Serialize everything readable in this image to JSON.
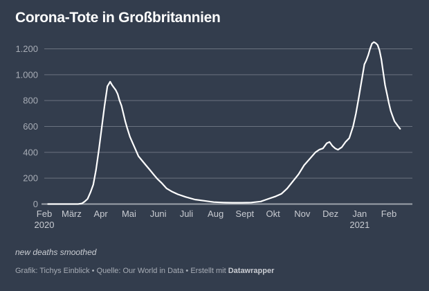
{
  "colors": {
    "background": "#333d4d",
    "line": "#ffffff",
    "grid": "#6b7380",
    "baseline": "#9ea3ab"
  },
  "chart_data": {
    "type": "line",
    "title": "Corona-Tote in Großbritannien",
    "xlabel": "",
    "ylabel": "",
    "ylim": [
      0,
      1200
    ],
    "yticks": [
      0,
      200,
      400,
      600,
      800,
      1000,
      1200
    ],
    "ytick_labels": [
      "0",
      "200",
      "400",
      "600",
      "800",
      "1.000",
      "1.200"
    ],
    "xticks": [
      {
        "label": "Feb",
        "sub": "2020",
        "day": 0
      },
      {
        "label": "März",
        "sub": "",
        "day": 29
      },
      {
        "label": "Apr",
        "sub": "",
        "day": 60
      },
      {
        "label": "Mai",
        "sub": "",
        "day": 90
      },
      {
        "label": "Juni",
        "sub": "",
        "day": 121
      },
      {
        "label": "Juli",
        "sub": "",
        "day": 151
      },
      {
        "label": "Aug",
        "sub": "",
        "day": 182
      },
      {
        "label": "Sept",
        "sub": "",
        "day": 213
      },
      {
        "label": "Okt",
        "sub": "",
        "day": 243
      },
      {
        "label": "Nov",
        "sub": "",
        "day": 274
      },
      {
        "label": "Dez",
        "sub": "",
        "day": 304
      },
      {
        "label": "Jan",
        "sub": "2021",
        "day": 335
      },
      {
        "label": "Feb",
        "sub": "",
        "day": 366
      }
    ],
    "x_range_days": [
      0,
      391
    ],
    "grid": true,
    "series": [
      {
        "name": "new deaths smoothed",
        "x_days_since_2020_02_01": [
          4,
          20,
          36,
          40,
          43,
          46,
          49,
          52,
          55,
          58,
          61,
          64,
          67,
          70,
          72,
          74,
          76,
          78,
          80,
          82,
          84,
          86,
          88,
          91,
          94,
          97,
          100,
          104,
          108,
          112,
          116,
          120,
          125,
          130,
          136,
          142,
          150,
          160,
          170,
          180,
          190,
          200,
          210,
          220,
          230,
          238,
          246,
          252,
          258,
          264,
          270,
          276,
          282,
          288,
          292,
          296,
          300,
          303,
          306,
          309,
          312,
          316,
          320,
          324,
          328,
          331,
          334,
          337,
          340,
          342,
          344,
          346,
          348,
          350,
          352,
          354,
          356,
          358,
          360,
          362,
          364,
          366,
          368,
          370,
          372,
          374,
          376,
          378
        ],
        "values": [
          0,
          0,
          0,
          5,
          20,
          40,
          90,
          150,
          265,
          420,
          590,
          760,
          910,
          946,
          920,
          900,
          880,
          850,
          800,
          760,
          700,
          640,
          590,
          520,
          470,
          420,
          370,
          335,
          300,
          265,
          230,
          195,
          160,
          120,
          95,
          75,
          55,
          35,
          25,
          15,
          12,
          10,
          10,
          12,
          20,
          40,
          60,
          80,
          120,
          175,
          230,
          300,
          350,
          400,
          420,
          430,
          470,
          480,
          450,
          430,
          420,
          440,
          480,
          510,
          600,
          700,
          820,
          950,
          1080,
          1110,
          1150,
          1200,
          1240,
          1252,
          1245,
          1230,
          1190,
          1120,
          1020,
          920,
          850,
          780,
          720,
          680,
          640,
          620,
          600,
          582
        ]
      }
    ],
    "note": "new deaths smoothed",
    "footer": {
      "credit": "Grafik: Tichys Einblick",
      "source": "Quelle: Our World in Data",
      "made_with_prefix": "Erstellt mit",
      "made_with_tool": "Datawrapper",
      "separator": "•"
    }
  }
}
